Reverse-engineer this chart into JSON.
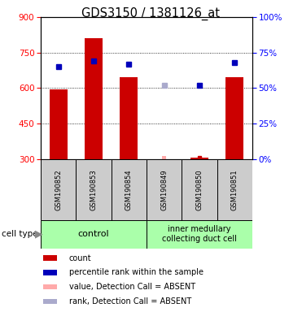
{
  "title": "GDS3150 / 1381126_at",
  "samples": [
    "GSM190852",
    "GSM190853",
    "GSM190854",
    "GSM190849",
    "GSM190850",
    "GSM190851"
  ],
  "count_values": [
    596,
    810,
    648,
    null,
    308,
    648
  ],
  "percentile_present": [
    65,
    69,
    67,
    null,
    52,
    68
  ],
  "percentile_absent_rank": [
    null,
    null,
    null,
    52,
    null,
    null
  ],
  "value_absent": [
    null,
    null,
    null,
    308,
    null,
    null
  ],
  "count_absent": [
    null,
    null,
    null,
    null,
    308,
    null
  ],
  "ylim_left": [
    300,
    900
  ],
  "ylim_right": [
    0,
    100
  ],
  "yticks_left": [
    300,
    450,
    600,
    750,
    900
  ],
  "yticks_right": [
    0,
    25,
    50,
    75,
    100
  ],
  "bar_color": "#cc0000",
  "dot_color_present": "#0000bb",
  "dot_color_absent_value": "#ffaaaa",
  "dot_color_absent_rank": "#aaaacc",
  "bar_width": 0.5,
  "absent_bar_color": "#ffaaaa",
  "absent_bar_width": 0.12
}
